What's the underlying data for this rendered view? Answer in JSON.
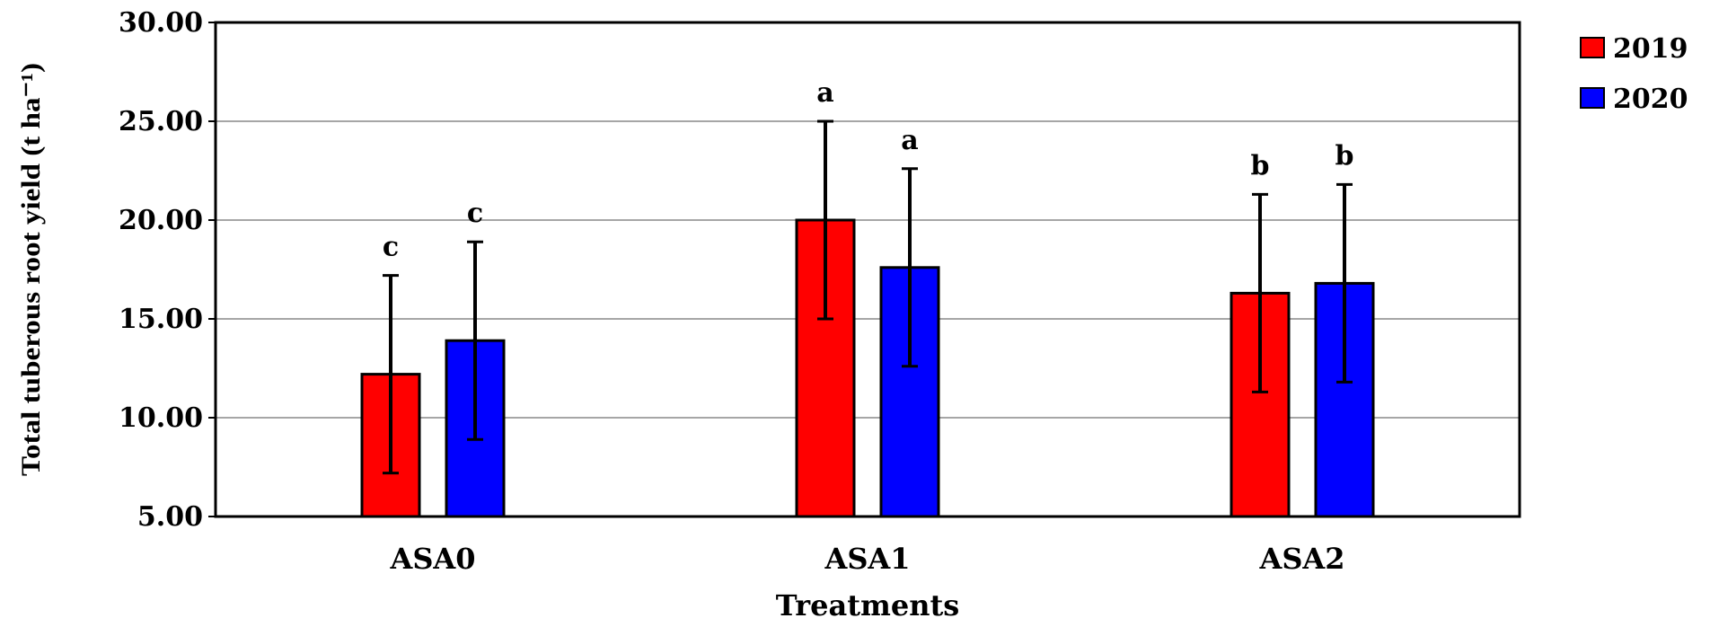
{
  "chart_data": {
    "type": "bar",
    "title": "",
    "xlabel": "Treatments",
    "ylabel": "Total tuberous root yield (t ha⁻¹)",
    "categories": [
      "ASA0",
      "ASA1",
      "ASA2"
    ],
    "ylim": [
      5.0,
      30.0
    ],
    "yticks": [
      "5.00",
      "10.00",
      "15.00",
      "20.00",
      "25.00",
      "30.00"
    ],
    "grid": "horizontal",
    "legend_position": "top-right, outside plot",
    "series": [
      {
        "name": "2019",
        "color": "#ff0000",
        "values": [
          12.2,
          20.0,
          16.3
        ],
        "errors": [
          5.0,
          5.0,
          5.0
        ],
        "letters": [
          "c",
          "a",
          "b"
        ]
      },
      {
        "name": "2020",
        "color": "#0000ff",
        "values": [
          13.9,
          17.6,
          16.8
        ],
        "errors": [
          5.0,
          5.0,
          5.0
        ],
        "letters": [
          "c",
          "a",
          "b"
        ]
      }
    ]
  }
}
